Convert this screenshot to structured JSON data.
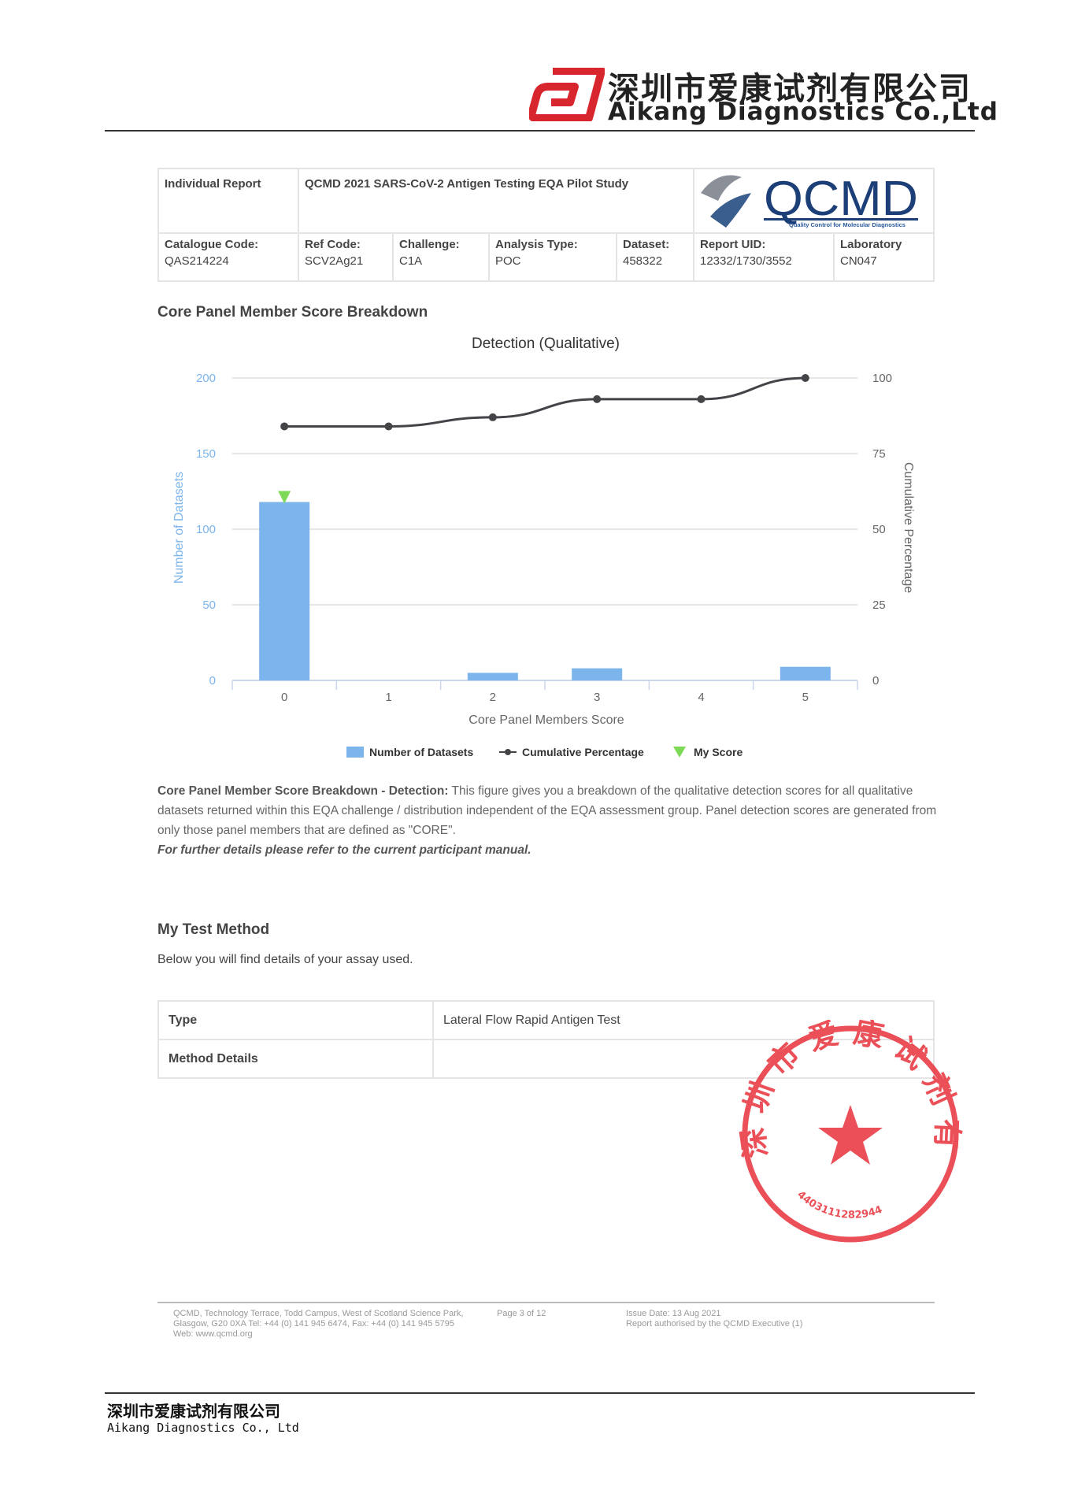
{
  "letterhead": {
    "company_cn": "深圳市爱康试剂有限公司",
    "company_en": "Aikang Diagnostics Co.,Ltd"
  },
  "report": {
    "title_left": "Individual Report",
    "title": "QCMD 2021 SARS-CoV-2 Antigen Testing EQA Pilot Study",
    "logo_text": "QCMD",
    "logo_tagline": "Quality Control for Molecular Diagnostics",
    "fields": [
      {
        "label": "Catalogue Code:",
        "value": "QAS214224"
      },
      {
        "label": "Ref Code:",
        "value": "SCV2Ag21"
      },
      {
        "label": "Challenge:",
        "value": "C1A"
      },
      {
        "label": "Analysis Type:",
        "value": "POC"
      },
      {
        "label": "Dataset:",
        "value": "458322"
      },
      {
        "label": "Report UID:",
        "value": "12332/1730/3552"
      },
      {
        "label": "Laboratory",
        "value": "CN047"
      }
    ]
  },
  "section1": {
    "title": "Core Panel Member Score Breakdown",
    "desc_bold": "Core Panel Member Score Breakdown - Detection:",
    "desc": " This figure gives you a breakdown of the qualitative detection scores for all qualitative datasets returned within this EQA challenge / distribution independent of the EQA assessment group. Panel detection scores are generated from only those panel members that are defined as \"CORE\".",
    "note": "For further details please refer to the current participant manual."
  },
  "chart_data": {
    "type": "bar",
    "title": "Detection (Qualitative)",
    "xlabel": "Core Panel Members Score",
    "ylabel": "Number of Datasets",
    "y2label": "Cumulative Percentage",
    "categories": [
      "0",
      "1",
      "2",
      "3",
      "4",
      "5"
    ],
    "ylim": [
      0,
      200
    ],
    "yticks": [
      "0",
      "50",
      "100",
      "150",
      "200"
    ],
    "y2lim": [
      0,
      100
    ],
    "y2ticks": [
      "0",
      "25",
      "50",
      "75",
      "100"
    ],
    "grid": true,
    "legend": "bottom",
    "series": [
      {
        "name": "Number of Datasets",
        "type": "bar",
        "color": "#7cb5ec",
        "values": [
          118,
          0,
          5,
          8,
          0,
          9
        ]
      },
      {
        "name": "Cumulative Percentage",
        "type": "line",
        "axis": "right",
        "color": "#434348",
        "values": [
          84,
          84,
          87,
          93,
          93,
          100
        ]
      },
      {
        "name": "My Score",
        "type": "marker",
        "color": "#7ed957",
        "x": "0",
        "value": 118
      }
    ]
  },
  "method": {
    "title": "My Test Method",
    "subtitle": "Below you will find details of your assay used.",
    "rows": [
      {
        "label": "Type",
        "value": "Lateral Flow Rapid Antigen Test"
      },
      {
        "label": "Method Details",
        "value": ""
      }
    ]
  },
  "stamp": {
    "text": "深圳市爱康试剂有限公司",
    "number": "4403111282944",
    "color": "#e8323c"
  },
  "footer": {
    "address": "QCMD, Technology Terrace, Todd Campus, West of Scotland Science Park, Glasgow, G20 0XA Tel: +44 (0) 141 945 6474, Fax: +44 (0) 141 945 5795 Web: www.qcmd.org",
    "page": "Page 3 of 12",
    "issue": "Issue Date: 13 Aug 2021",
    "authorised": "Report authorised by the QCMD Executive (1)"
  },
  "bottom": {
    "company_cn": "深圳市爱康试剂有限公司",
    "company_en": "Aikang Diagnostics Co., Ltd"
  }
}
